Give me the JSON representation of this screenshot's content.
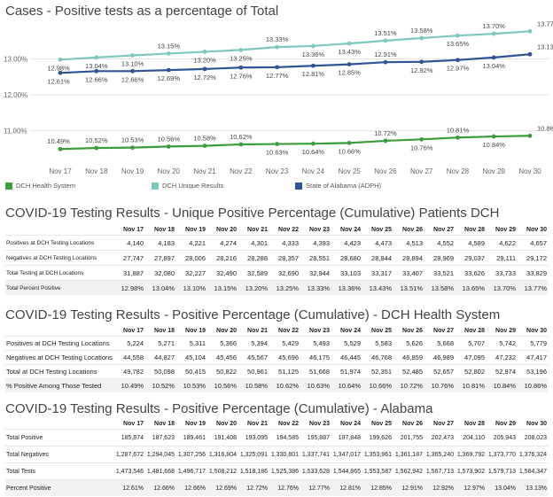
{
  "chart_title": "Cases - Positive tests as a percentage of Total",
  "chart_data": {
    "type": "line",
    "title": "Cases - Positive tests as a percentage of Total",
    "x": [
      "Nov 17",
      "Nov 18",
      "Nov 19",
      "Nov 20",
      "Nov 21",
      "Nov 22",
      "Nov 23",
      "Nov 24",
      "Nov 25",
      "Nov 26",
      "Nov 27",
      "Nov 28",
      "Nov 29",
      "Nov 30"
    ],
    "y_ticks": [
      "11.00%",
      "12.00%",
      "13.00%"
    ],
    "ylim": [
      10.2,
      14.0
    ],
    "series": [
      {
        "name": "DCH Health System",
        "color": "#3b9e3b",
        "values": [
          10.49,
          10.52,
          10.53,
          10.56,
          10.58,
          10.62,
          10.63,
          10.64,
          10.66,
          10.72,
          10.76,
          10.81,
          10.84,
          10.86
        ],
        "labels": [
          "10.49%",
          "10.52%",
          "10.53%",
          "10.56%",
          "10.58%",
          "10.62%",
          "10.63%",
          "10.64%",
          "10.66%",
          "10.72%",
          "10.76%",
          "10.81%",
          "10.84%",
          "10.86%"
        ]
      },
      {
        "name": "DCH Unique Results",
        "color": "#7ec8c0",
        "values": [
          12.98,
          13.04,
          13.1,
          13.15,
          13.2,
          13.25,
          13.33,
          13.36,
          13.43,
          13.51,
          13.58,
          13.65,
          13.7,
          13.77
        ],
        "labels": [
          "12.98%",
          "13.04%",
          "13.10%",
          "13.15%",
          "13.20%",
          "13.25%",
          "13.33%",
          "13.36%",
          "13.43%",
          "13.51%",
          "13.58%",
          "13.65%",
          "13.70%",
          "13.77%"
        ]
      },
      {
        "name": "State of Alabama (ADPH)",
        "color": "#2f5597",
        "values": [
          12.61,
          12.66,
          12.66,
          12.69,
          12.72,
          12.76,
          12.77,
          12.81,
          12.85,
          12.91,
          12.92,
          12.97,
          13.04,
          13.13
        ],
        "labels": [
          "12.61%",
          "12.66%",
          "12.66%",
          "12.69%",
          "12.72%",
          "12.76%",
          "12.77%",
          "12.81%",
          "12.85%",
          "12.91%",
          "12.92%",
          "12.97%",
          "13.04%",
          "13.13%"
        ]
      }
    ],
    "legend": "bottom"
  },
  "dates": [
    "Nov 17",
    "Nov 18",
    "Nov 19",
    "Nov 20",
    "Nov 21",
    "Nov 22",
    "Nov 23",
    "Nov 24",
    "Nov 25",
    "Nov 26",
    "Nov 27",
    "Nov 28",
    "Nov 29",
    "Nov 30"
  ],
  "tables": [
    {
      "title": "COVID-19 Testing Results - Unique Positive Percentage (Cumulative) Patients DCH",
      "rows": [
        {
          "label": "Positives at DCH Testing Locations",
          "values": [
            "4,140",
            "4,183",
            "4,221",
            "4,274",
            "4,301",
            "4,333",
            "4,393",
            "4,423",
            "4,473",
            "4,513",
            "4,552",
            "4,589",
            "4,622",
            "4,657"
          ]
        },
        {
          "label": "Negatives at DCH Testing Locations",
          "values": [
            "27,747",
            "27,897",
            "28,006",
            "28,216",
            "28,288",
            "28,357",
            "28,551",
            "28,680",
            "28,844",
            "28,894",
            "28,969",
            "29,037",
            "29,111",
            "29,172"
          ]
        },
        {
          "label": "Total Testing at DCH Locations",
          "values": [
            "31,887",
            "32,080",
            "32,227",
            "32,490",
            "32,589",
            "32,690",
            "32,944",
            "33,103",
            "33,317",
            "33,407",
            "33,521",
            "33,626",
            "33,733",
            "33,829"
          ]
        },
        {
          "label": "Total Percent Positive",
          "values": [
            "12.98%",
            "13.04%",
            "13.10%",
            "13.15%",
            "13.20%",
            "13.25%",
            "13.33%",
            "13.36%",
            "13.43%",
            "13.51%",
            "13.58%",
            "13.65%",
            "13.70%",
            "13.77%"
          ]
        }
      ]
    },
    {
      "title": "COVID-19 Testing Results - Positive Percentage (Cumulative) - DCH Health System",
      "rows": [
        {
          "label": "Positives at DCH Testing Locations",
          "values": [
            "5,224",
            "5,271",
            "5,311",
            "5,366",
            "5,394",
            "5,429",
            "5,493",
            "5,529",
            "5,583",
            "5,626",
            "5,668",
            "5,707",
            "5,742",
            "5,779"
          ]
        },
        {
          "label": "Negatives at DCH Testing Locations",
          "values": [
            "44,558",
            "44,827",
            "45,104",
            "45,456",
            "45,567",
            "45,696",
            "46,175",
            "46,445",
            "46,768",
            "46,859",
            "46,989",
            "47,095",
            "47,232",
            "47,417"
          ]
        },
        {
          "label": "Total at DCH Testing Locations",
          "values": [
            "49,782",
            "50,098",
            "50,415",
            "50,822",
            "50,961",
            "51,125",
            "51,668",
            "51,974",
            "52,351",
            "52,485",
            "52,657",
            "52,802",
            "52,974",
            "53,196"
          ]
        },
        {
          "label": "% Positive Among Those Tested",
          "values": [
            "10.49%",
            "10.52%",
            "10.53%",
            "10.56%",
            "10.58%",
            "10.62%",
            "10.63%",
            "10.64%",
            "10.66%",
            "10.72%",
            "10.76%",
            "10.81%",
            "10.84%",
            "10.86%"
          ]
        }
      ]
    },
    {
      "title": "COVID-19 Testing Results - Positive Percentage (Cumulative) - Alabama",
      "rows": [
        {
          "label": "Total Positive",
          "values": [
            "185,874",
            "187,623",
            "189,461",
            "191,408",
            "193,095",
            "194,585",
            "195,887",
            "197,848",
            "199,626",
            "201,755",
            "202,473",
            "204,110",
            "205,943",
            "208,023"
          ]
        },
        {
          "label": "Total Negatives",
          "values": [
            "1,287,672",
            "1,294,045",
            "1,307,256",
            "1,316,804",
            "1,325,091",
            "1,330,801",
            "1,337,741",
            "1,347,017",
            "1,353,961",
            "1,361,187",
            "1,365,240",
            "1,369,792",
            "1,373,770",
            "1,376,324"
          ]
        },
        {
          "label": "Total Tests",
          "values": [
            "1,473,546",
            "1,481,668",
            "1,496,717",
            "1,508,212",
            "1,518,186",
            "1,525,386",
            "1,533,628",
            "1,544,865",
            "1,553,587",
            "1,562,942",
            "1,567,713",
            "1,573,902",
            "1,579,713",
            "1,584,347"
          ]
        },
        {
          "label": "Percent Positive",
          "values": [
            "12.61%",
            "12.66%",
            "12.66%",
            "12.69%",
            "12.72%",
            "12.76%",
            "12.77%",
            "12.81%",
            "12.85%",
            "12.91%",
            "12.92%",
            "12.97%",
            "13.04%",
            "13.13%"
          ]
        }
      ]
    }
  ]
}
